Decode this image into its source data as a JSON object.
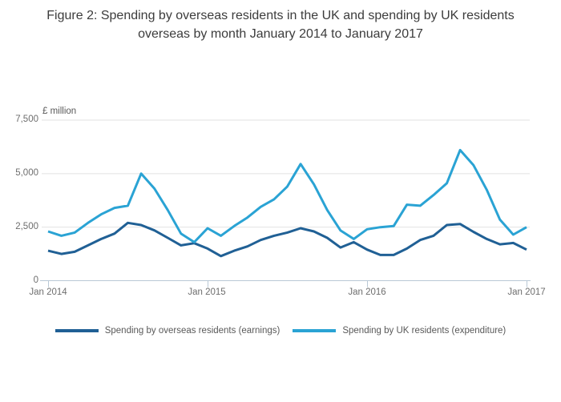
{
  "title": "Figure 2: Spending by overseas residents in the UK and spending by UK residents overseas by month January 2014 to January 2017",
  "chart_data": {
    "type": "line",
    "title": "Figure 2: Spending by overseas residents in the UK and spending by UK residents overseas by month January 2014 to January 2017",
    "ylabel": "£ million",
    "xlabel": "",
    "ylim": [
      0,
      7500
    ],
    "grid": true,
    "legend_position": "bottom",
    "y_ticks": [
      0,
      2500,
      5000,
      7500
    ],
    "y_tick_labels": [
      "0",
      "2,500",
      "5,000",
      "7,500"
    ],
    "x_tick_labels": [
      "Jan 2014",
      "Jan 2015",
      "Jan 2016",
      "Jan 2017"
    ],
    "x": [
      "Jan 2014",
      "Feb 2014",
      "Mar 2014",
      "Apr 2014",
      "May 2014",
      "Jun 2014",
      "Jul 2014",
      "Aug 2014",
      "Sep 2014",
      "Oct 2014",
      "Nov 2014",
      "Dec 2014",
      "Jan 2015",
      "Feb 2015",
      "Mar 2015",
      "Apr 2015",
      "May 2015",
      "Jun 2015",
      "Jul 2015",
      "Aug 2015",
      "Sep 2015",
      "Oct 2015",
      "Nov 2015",
      "Dec 2015",
      "Jan 2016",
      "Feb 2016",
      "Mar 2016",
      "Apr 2016",
      "May 2016",
      "Jun 2016",
      "Jul 2016",
      "Aug 2016",
      "Sep 2016",
      "Oct 2016",
      "Nov 2016",
      "Dec 2016",
      "Jan 2017"
    ],
    "series": [
      {
        "name": "Spending by overseas residents (earnings)",
        "color": "#206095",
        "values": [
          1400,
          1250,
          1350,
          1650,
          1950,
          2200,
          2700,
          2600,
          2350,
          2000,
          1650,
          1750,
          1500,
          1150,
          1400,
          1600,
          1900,
          2100,
          2250,
          2450,
          2300,
          2000,
          1550,
          1800,
          1450,
          1200,
          1200,
          1500,
          1900,
          2100,
          2600,
          2650,
          2280,
          1950,
          1700,
          1760,
          1450
        ]
      },
      {
        "name": "Spending by UK residents (expenditure)",
        "color": "#2aa3d4",
        "values": [
          2300,
          2100,
          2250,
          2700,
          3100,
          3400,
          3500,
          5000,
          4300,
          3300,
          2200,
          1800,
          2450,
          2100,
          2550,
          2950,
          3450,
          3800,
          4400,
          5450,
          4500,
          3300,
          2350,
          1950,
          2400,
          2500,
          2550,
          3550,
          3500,
          4000,
          4550,
          6100,
          5400,
          4250,
          2850,
          2150,
          2500
        ]
      }
    ],
    "axis_color": "#b9c8d6",
    "gridline_color": "#e2e2e2"
  }
}
